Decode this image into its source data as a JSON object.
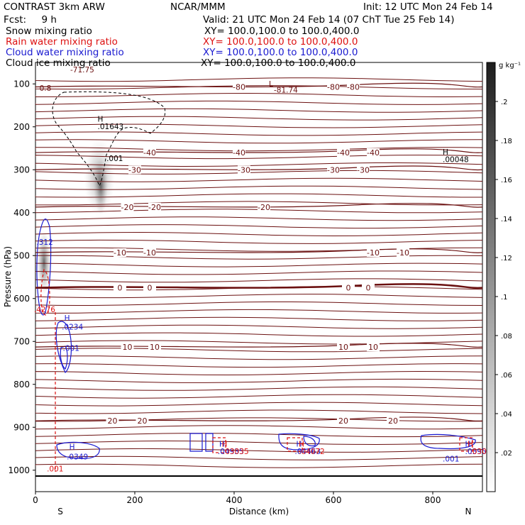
{
  "header": {
    "model": "CONTRAST  3km ARW",
    "center": "NCAR/MMM",
    "init": "Init: 12 UTC Mon 24 Feb 14",
    "fcst": "Fcst:     9 h",
    "valid": "Valid: 21 UTC Mon 24 Feb 14 (07 ChT Tue 25 Feb 14)"
  },
  "legend": [
    {
      "name": "Snow mixing ratio",
      "color": "#000000",
      "xy": ""
    },
    {
      "name": "Rain water mixing ratio",
      "color": "#dd1111",
      "xy": "XY= 100.0,100.0 to 100.0,400.0"
    },
    {
      "name": "Cloud water mixing ratio",
      "color": "#1a1ad0",
      "xy": "XY= 100.0,100.0 to 100.0,400.0"
    },
    {
      "name": "Cloud ice mixing ratio",
      "color": "#000000",
      "xy": "XY= 100.0,100.0 to 100.0,400.0"
    }
  ],
  "snow_xy": "XY= 100.0,100.0 to 100.0,400.0",
  "chart_data": {
    "type": "contour-cross-section",
    "xlabel": "Distance (km)",
    "ylabel": "Pressure (hPa)",
    "xlim": [
      0,
      900
    ],
    "ylim": [
      1050,
      50
    ],
    "x_ticks": [
      "0",
      "200",
      "400",
      "600",
      "800"
    ],
    "x_tick_values": [
      0,
      200,
      400,
      600,
      800
    ],
    "y_ticks": [
      "100",
      "200",
      "300",
      "400",
      "500",
      "600",
      "700",
      "800",
      "900",
      "1000"
    ],
    "y_tick_values": [
      100,
      200,
      300,
      400,
      500,
      600,
      700,
      800,
      900,
      1000
    ],
    "left_end": "S",
    "right_end": "N",
    "colorbar": {
      "units": "g kg⁻¹",
      "labels": [
        ".2",
        ".18",
        ".16",
        ".14",
        ".12",
        ".1",
        ".08",
        ".06",
        ".04",
        ".02"
      ],
      "values": [
        0.2,
        0.18,
        0.16,
        0.14,
        0.12,
        0.1,
        0.08,
        0.06,
        0.04,
        0.02
      ]
    },
    "temperature_contours": [
      {
        "level": "0",
        "pressure": 575,
        "labels_km": [
          170,
          230,
          630,
          670
        ],
        "emphasis": true
      },
      {
        "level": "-10",
        "pressure": 493,
        "labels_km": [
          170,
          230,
          680,
          740
        ]
      },
      {
        "level": "-20",
        "pressure": 387,
        "labels_km": [
          185,
          240,
          460
        ]
      },
      {
        "level": "-30",
        "pressure": 300,
        "labels_km": [
          200,
          420,
          600,
          660
        ]
      },
      {
        "level": "-40",
        "pressure": 260,
        "labels_km": [
          230,
          410,
          620,
          680
        ]
      },
      {
        "level": "10",
        "pressure": 713,
        "labels_km": [
          185,
          240,
          620,
          680
        ]
      },
      {
        "level": "20",
        "pressure": 885,
        "labels_km": [
          155,
          215,
          620,
          720
        ]
      },
      {
        "level": "-80",
        "pressure": 107,
        "labels_km": [
          410,
          600,
          640
        ]
      }
    ],
    "annotations": [
      {
        "text": "-71.75",
        "km": 70,
        "hpa": 73,
        "color": "#6b1010"
      },
      {
        "text": "0.8",
        "km": 8,
        "hpa": 116,
        "color": "#6b1010"
      },
      {
        "text": "L",
        "km": 470,
        "hpa": 106,
        "color": "#6b1010"
      },
      {
        "text": "-81.74",
        "km": 480,
        "hpa": 120,
        "color": "#6b1010"
      },
      {
        "text": "H",
        "km": 125,
        "hpa": 188,
        "color": "#000000"
      },
      {
        "text": ".01643",
        "km": 125,
        "hpa": 205,
        "color": "#000000"
      },
      {
        "text": ".001",
        "km": 143,
        "hpa": 280,
        "color": "#000000"
      },
      {
        "text": "H",
        "km": 820,
        "hpa": 265,
        "color": "#000000"
      },
      {
        "text": ".00048",
        "km": 820,
        "hpa": 282,
        "color": "#000000"
      },
      {
        "text": ".312",
        "km": 2,
        "hpa": 475,
        "color": "#1a1ad0"
      },
      {
        "text": ".4276",
        "km": -3,
        "hpa": 632,
        "color": "#dd1111"
      },
      {
        "text": "H",
        "km": 58,
        "hpa": 652,
        "color": "#1a1ad0"
      },
      {
        "text": ".0234",
        "km": 53,
        "hpa": 672,
        "color": "#1a1ad0"
      },
      {
        "text": ".001",
        "km": 55,
        "hpa": 722,
        "color": "#1a1ad0"
      },
      {
        "text": "H",
        "km": 68,
        "hpa": 952,
        "color": "#1a1ad0"
      },
      {
        "text": ".0349",
        "km": 63,
        "hpa": 975,
        "color": "#1a1ad0"
      },
      {
        "text": ".001",
        "km": 23,
        "hpa": 1003,
        "color": "#dd1111"
      },
      {
        "text": "H",
        "km": 370,
        "hpa": 945,
        "color": "#1a1ad0"
      },
      {
        "text": "H",
        "km": 375,
        "hpa": 945,
        "color": "#dd1111"
      },
      {
        "text": ".04935",
        "km": 367,
        "hpa": 962,
        "color": "#1a1ad0"
      },
      {
        "text": ".03035",
        "km": 377,
        "hpa": 962,
        "color": "#dd1111"
      },
      {
        "text": "H",
        "km": 525,
        "hpa": 945,
        "color": "#1a1ad0"
      },
      {
        "text": "H",
        "km": 530,
        "hpa": 945,
        "color": "#dd1111"
      },
      {
        "text": ".04463",
        "km": 522,
        "hpa": 962,
        "color": "#1a1ad0"
      },
      {
        "text": ".04072",
        "km": 530,
        "hpa": 962,
        "color": "#dd1111"
      },
      {
        "text": "H",
        "km": 865,
        "hpa": 945,
        "color": "#1a1ad0"
      },
      {
        "text": "H",
        "km": 870,
        "hpa": 945,
        "color": "#dd1111"
      },
      {
        "text": ".03954",
        "km": 865,
        "hpa": 962,
        "color": "#1a1ad0"
      },
      {
        "text": ".03052",
        "km": 875,
        "hpa": 962,
        "color": "#dd1111"
      },
      {
        "text": ".001",
        "km": 820,
        "hpa": 980,
        "color": "#1a1ad0"
      }
    ]
  }
}
